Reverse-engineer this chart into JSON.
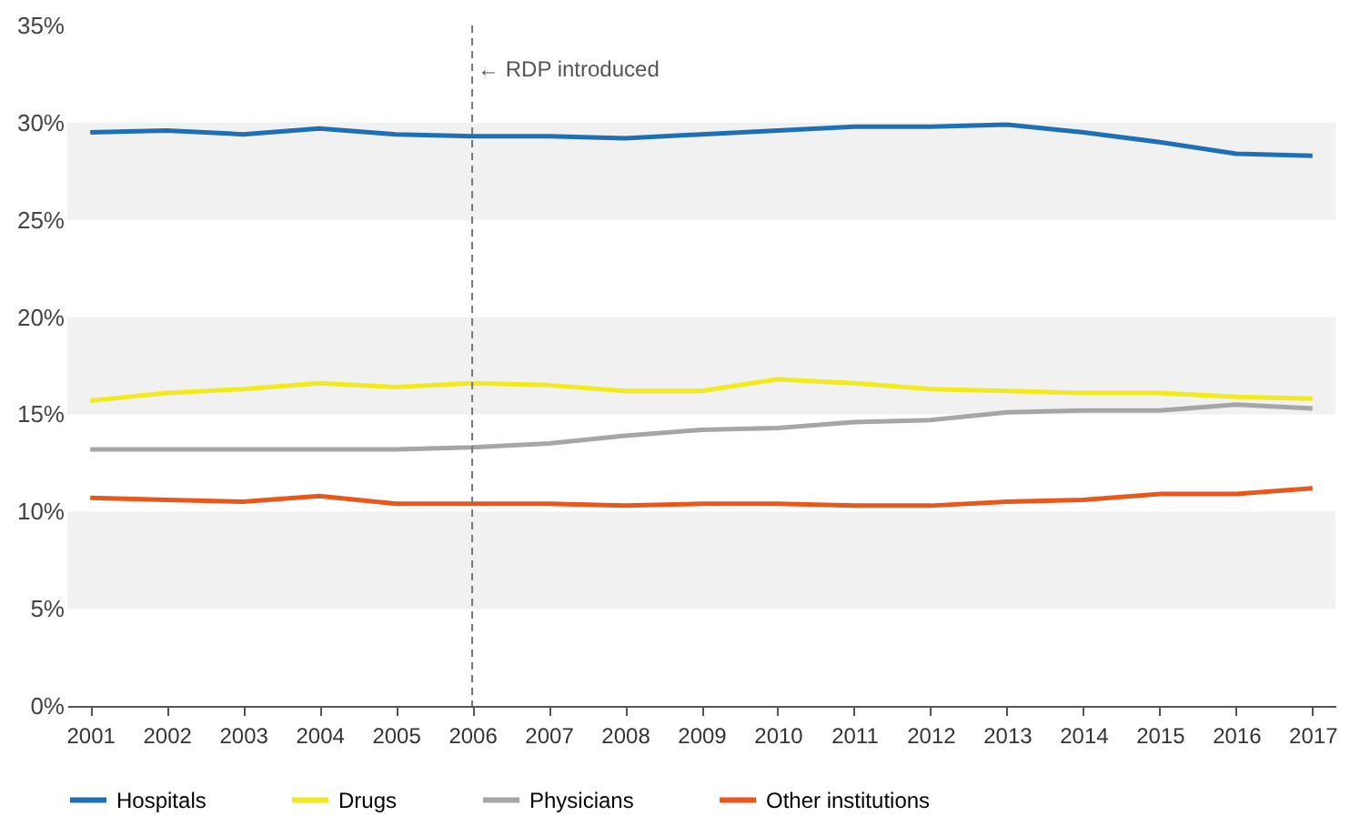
{
  "chart_data": {
    "type": "line",
    "categories": [
      "2001",
      "2002",
      "2003",
      "2004",
      "2005",
      "2006",
      "2007",
      "2008",
      "2009",
      "2010",
      "2011",
      "2012",
      "2013",
      "2014",
      "2015",
      "2016",
      "2017"
    ],
    "series": [
      {
        "name": "Hospitals",
        "color": "#1f6fb5",
        "values": [
          29.5,
          29.6,
          29.4,
          29.7,
          29.4,
          29.3,
          29.3,
          29.2,
          29.4,
          29.6,
          29.8,
          29.8,
          29.9,
          29.5,
          29.0,
          28.4,
          28.3
        ]
      },
      {
        "name": "Drugs",
        "color": "#f2ea1d",
        "values": [
          15.7,
          16.1,
          16.3,
          16.6,
          16.4,
          16.6,
          16.5,
          16.2,
          16.2,
          16.8,
          16.6,
          16.3,
          16.2,
          16.1,
          16.1,
          15.9,
          15.8
        ]
      },
      {
        "name": "Physicians",
        "color": "#a6a6a6",
        "values": [
          13.2,
          13.2,
          13.2,
          13.2,
          13.2,
          13.3,
          13.5,
          13.9,
          14.2,
          14.3,
          14.6,
          14.7,
          15.1,
          15.2,
          15.2,
          15.5,
          15.3
        ]
      },
      {
        "name": "Other institutions",
        "color": "#e8571c",
        "values": [
          10.7,
          10.6,
          10.5,
          10.8,
          10.4,
          10.4,
          10.4,
          10.3,
          10.4,
          10.4,
          10.3,
          10.3,
          10.5,
          10.6,
          10.9,
          10.9,
          11.2
        ]
      }
    ],
    "ylim": [
      0,
      35
    ],
    "yticks": [
      {
        "value": 0,
        "label": "0%"
      },
      {
        "value": 5,
        "label": "5%"
      },
      {
        "value": 10,
        "label": "10%"
      },
      {
        "value": 15,
        "label": "15%"
      },
      {
        "value": 20,
        "label": "20%"
      },
      {
        "value": 25,
        "label": "25%"
      },
      {
        "value": 30,
        "label": "30%"
      },
      {
        "value": 35,
        "label": "35%"
      }
    ],
    "bands": [
      {
        "axis": "y",
        "from": 25,
        "to": 30,
        "color": "#f1f1f1"
      },
      {
        "axis": "y",
        "from": 15,
        "to": 20,
        "color": "#f1f1f1"
      },
      {
        "axis": "y",
        "from": 5,
        "to": 10,
        "color": "#f1f1f1"
      }
    ],
    "ref_lines": [
      {
        "axis": "x",
        "value": "2006",
        "label": "← RDP introduced",
        "line_style": "dashed",
        "color": "#777777"
      }
    ],
    "grid": false,
    "legend": "bottom",
    "marker": "none",
    "line_style": "solid"
  }
}
